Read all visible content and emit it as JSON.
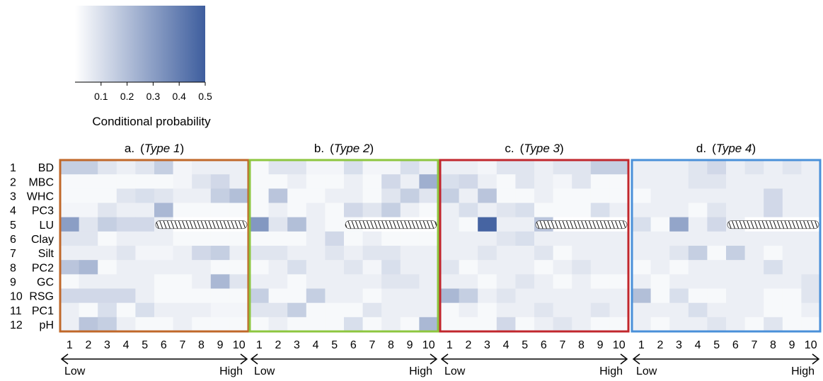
{
  "legend": {
    "ticks": [
      "0.1",
      "0.2",
      "0.3",
      "0.4",
      "0.5"
    ],
    "tick_values": [
      0.1,
      0.2,
      0.3,
      0.4,
      0.5
    ],
    "range": [
      0.0,
      0.5
    ],
    "title": "Conditional probability",
    "color_low": "#ffffff",
    "color_high": "#3e5e9e"
  },
  "chart_data": {
    "type": "heatmap",
    "rows": [
      {
        "num": "1",
        "label": "BD"
      },
      {
        "num": "2",
        "label": "MBC"
      },
      {
        "num": "3",
        "label": "WHC"
      },
      {
        "num": "4",
        "label": "PC3"
      },
      {
        "num": "5",
        "label": "LU"
      },
      {
        "num": "6",
        "label": "Clay"
      },
      {
        "num": "7",
        "label": "Silt"
      },
      {
        "num": "8",
        "label": "PC2"
      },
      {
        "num": "9",
        "label": "GC"
      },
      {
        "num": "10",
        "label": "RSG"
      },
      {
        "num": "11",
        "label": "PC1"
      },
      {
        "num": "12",
        "label": "pH"
      }
    ],
    "columns": [
      "1",
      "2",
      "3",
      "4",
      "5",
      "6",
      "7",
      "8",
      "9",
      "10"
    ],
    "axis_low": "Low",
    "axis_high": "High",
    "hatched_note": "LU columns 6–10 not applicable (hatched)",
    "panels": [
      {
        "letter": "a.",
        "type_label": "Type 1",
        "border_color": "#c0682a",
        "hatch": {
          "row": 4,
          "from_col": 5,
          "to_col": 9
        },
        "values": [
          [
            0.15,
            0.15,
            0.08,
            0.05,
            0.08,
            0.15,
            0.03,
            0.05,
            0.05,
            0.05
          ],
          [
            0.02,
            0.02,
            0.02,
            0.02,
            0.02,
            0.02,
            0.03,
            0.08,
            0.12,
            0.05
          ],
          [
            0.02,
            0.02,
            0.02,
            0.08,
            0.1,
            0.08,
            0.05,
            0.05,
            0.15,
            0.2
          ],
          [
            0.03,
            0.03,
            0.08,
            0.05,
            0.05,
            0.22,
            0.02,
            0.02,
            0.02,
            0.02
          ],
          [
            0.3,
            0.08,
            0.15,
            0.12,
            0.12,
            0.05,
            null,
            null,
            null,
            null
          ],
          [
            0.08,
            0.08,
            0.02,
            0.05,
            0.05,
            0.05,
            0.02,
            0.02,
            0.02,
            0.02
          ],
          [
            0.05,
            0.05,
            0.05,
            0.08,
            0.03,
            0.03,
            0.05,
            0.12,
            0.15,
            0.05
          ],
          [
            0.18,
            0.22,
            0.02,
            0.05,
            0.05,
            0.05,
            0.05,
            0.05,
            0.02,
            0.02
          ],
          [
            0.02,
            0.05,
            0.05,
            0.05,
            0.05,
            0.02,
            0.02,
            0.05,
            0.22,
            0.08
          ],
          [
            0.12,
            0.12,
            0.12,
            0.12,
            0.05,
            0.02,
            0.02,
            0.02,
            0.02,
            0.02
          ],
          [
            0.05,
            0.02,
            0.1,
            0.02,
            0.1,
            0.05,
            0.05,
            0.05,
            0.03,
            0.03
          ],
          [
            0.05,
            0.18,
            0.15,
            0.05,
            0.02,
            0.02,
            0.05,
            0.02,
            0.02,
            0.02
          ]
        ]
      },
      {
        "letter": "b.",
        "type_label": "Type 2",
        "border_color": "#8dc63f",
        "hatch": {
          "row": 4,
          "from_col": 5,
          "to_col": 9
        },
        "values": [
          [
            0.02,
            0.08,
            0.08,
            0.03,
            0.03,
            0.1,
            0.03,
            0.03,
            0.1,
            0.05
          ],
          [
            0.02,
            0.02,
            0.05,
            0.02,
            0.02,
            0.05,
            0.02,
            0.12,
            0.05,
            0.25
          ],
          [
            0.02,
            0.18,
            0.02,
            0.02,
            0.05,
            0.05,
            0.02,
            0.08,
            0.15,
            0.08
          ],
          [
            0.02,
            0.05,
            0.02,
            0.05,
            0.02,
            0.12,
            0.08,
            0.15,
            0.05,
            0.02
          ],
          [
            0.32,
            0.08,
            0.2,
            0.05,
            0.02,
            0.02,
            null,
            null,
            null,
            null
          ],
          [
            0.02,
            0.02,
            0.02,
            0.05,
            0.12,
            0.02,
            0.05,
            0.02,
            0.02,
            0.02
          ],
          [
            0.08,
            0.08,
            0.05,
            0.05,
            0.08,
            0.05,
            0.08,
            0.08,
            0.05,
            0.05
          ],
          [
            0.02,
            0.05,
            0.1,
            0.05,
            0.05,
            0.08,
            0.03,
            0.1,
            0.05,
            0.05
          ],
          [
            0.05,
            0.05,
            0.02,
            0.05,
            0.05,
            0.05,
            0.05,
            0.08,
            0.08,
            0.05
          ],
          [
            0.15,
            0.02,
            0.02,
            0.15,
            0.05,
            0.05,
            0.02,
            0.05,
            0.05,
            0.05
          ],
          [
            0.08,
            0.08,
            0.15,
            0.02,
            0.02,
            0.02,
            0.08,
            0.05,
            0.05,
            0.05
          ],
          [
            0.02,
            0.05,
            0.02,
            0.02,
            0.02,
            0.1,
            0.02,
            0.05,
            0.02,
            0.22
          ]
        ]
      },
      {
        "letter": "c.",
        "type_label": "Type 3",
        "border_color": "#c1272d",
        "hatch": {
          "row": 4,
          "from_col": 5,
          "to_col": 9
        },
        "values": [
          [
            0.05,
            0.05,
            0.03,
            0.08,
            0.08,
            0.05,
            0.08,
            0.08,
            0.15,
            0.15
          ],
          [
            0.1,
            0.12,
            0.05,
            0.02,
            0.08,
            0.05,
            0.03,
            0.08,
            0.02,
            0.02
          ],
          [
            0.15,
            0.05,
            0.18,
            0.02,
            0.02,
            0.05,
            0.02,
            0.02,
            0.02,
            0.02
          ],
          [
            0.05,
            0.1,
            0.05,
            0.08,
            0.1,
            0.02,
            0.02,
            0.02,
            0.1,
            0.05
          ],
          [
            0.05,
            0.02,
            0.48,
            0.05,
            0.05,
            0.18,
            null,
            null,
            null,
            null
          ],
          [
            0.05,
            0.05,
            0.05,
            0.08,
            0.1,
            0.05,
            0.05,
            0.05,
            0.05,
            0.05
          ],
          [
            0.05,
            0.05,
            0.08,
            0.05,
            0.05,
            0.08,
            0.02,
            0.05,
            0.05,
            0.05
          ],
          [
            0.08,
            0.02,
            0.05,
            0.05,
            0.05,
            0.02,
            0.05,
            0.08,
            0.05,
            0.05
          ],
          [
            0.05,
            0.05,
            0.02,
            0.05,
            0.08,
            0.05,
            0.02,
            0.05,
            0.02,
            0.02
          ],
          [
            0.22,
            0.15,
            0.05,
            0.08,
            0.05,
            0.05,
            0.05,
            0.05,
            0.05,
            0.05
          ],
          [
            0.02,
            0.05,
            0.02,
            0.05,
            0.05,
            0.08,
            0.05,
            0.05,
            0.08,
            0.05
          ],
          [
            0.02,
            0.02,
            0.02,
            0.12,
            0.02,
            0.05,
            0.08,
            0.05,
            0.02,
            0.02
          ]
        ]
      },
      {
        "letter": "d.",
        "type_label": "Type 4",
        "border_color": "#4a90d9",
        "hatch": {
          "row": 4,
          "from_col": 5,
          "to_col": 9
        },
        "values": [
          [
            0.05,
            0.05,
            0.05,
            0.08,
            0.12,
            0.05,
            0.08,
            0.05,
            0.08,
            0.05
          ],
          [
            0.05,
            0.05,
            0.05,
            0.08,
            0.08,
            0.05,
            0.05,
            0.05,
            0.05,
            0.05
          ],
          [
            0.02,
            0.05,
            0.05,
            0.05,
            0.05,
            0.05,
            0.05,
            0.12,
            0.05,
            0.05
          ],
          [
            0.05,
            0.05,
            0.05,
            0.02,
            0.08,
            0.05,
            0.05,
            0.12,
            0.05,
            0.05
          ],
          [
            0.1,
            0.02,
            0.28,
            0.05,
            0.12,
            0.05,
            null,
            null,
            null,
            null
          ],
          [
            0.05,
            0.05,
            0.05,
            0.05,
            0.05,
            0.05,
            0.05,
            0.05,
            0.05,
            0.05
          ],
          [
            0.05,
            0.05,
            0.08,
            0.15,
            0.02,
            0.15,
            0.05,
            0.02,
            0.05,
            0.05
          ],
          [
            0.02,
            0.05,
            0.02,
            0.05,
            0.05,
            0.05,
            0.05,
            0.1,
            0.05,
            0.05
          ],
          [
            0.05,
            0.02,
            0.05,
            0.05,
            0.05,
            0.05,
            0.05,
            0.05,
            0.05,
            0.08
          ],
          [
            0.2,
            0.02,
            0.1,
            0.02,
            0.02,
            0.05,
            0.05,
            0.02,
            0.02,
            0.08
          ],
          [
            0.05,
            0.05,
            0.05,
            0.1,
            0.05,
            0.05,
            0.05,
            0.02,
            0.02,
            0.05
          ],
          [
            0.05,
            0.02,
            0.05,
            0.05,
            0.08,
            0.05,
            0.02,
            0.08,
            0.02,
            0.02
          ]
        ]
      }
    ]
  }
}
